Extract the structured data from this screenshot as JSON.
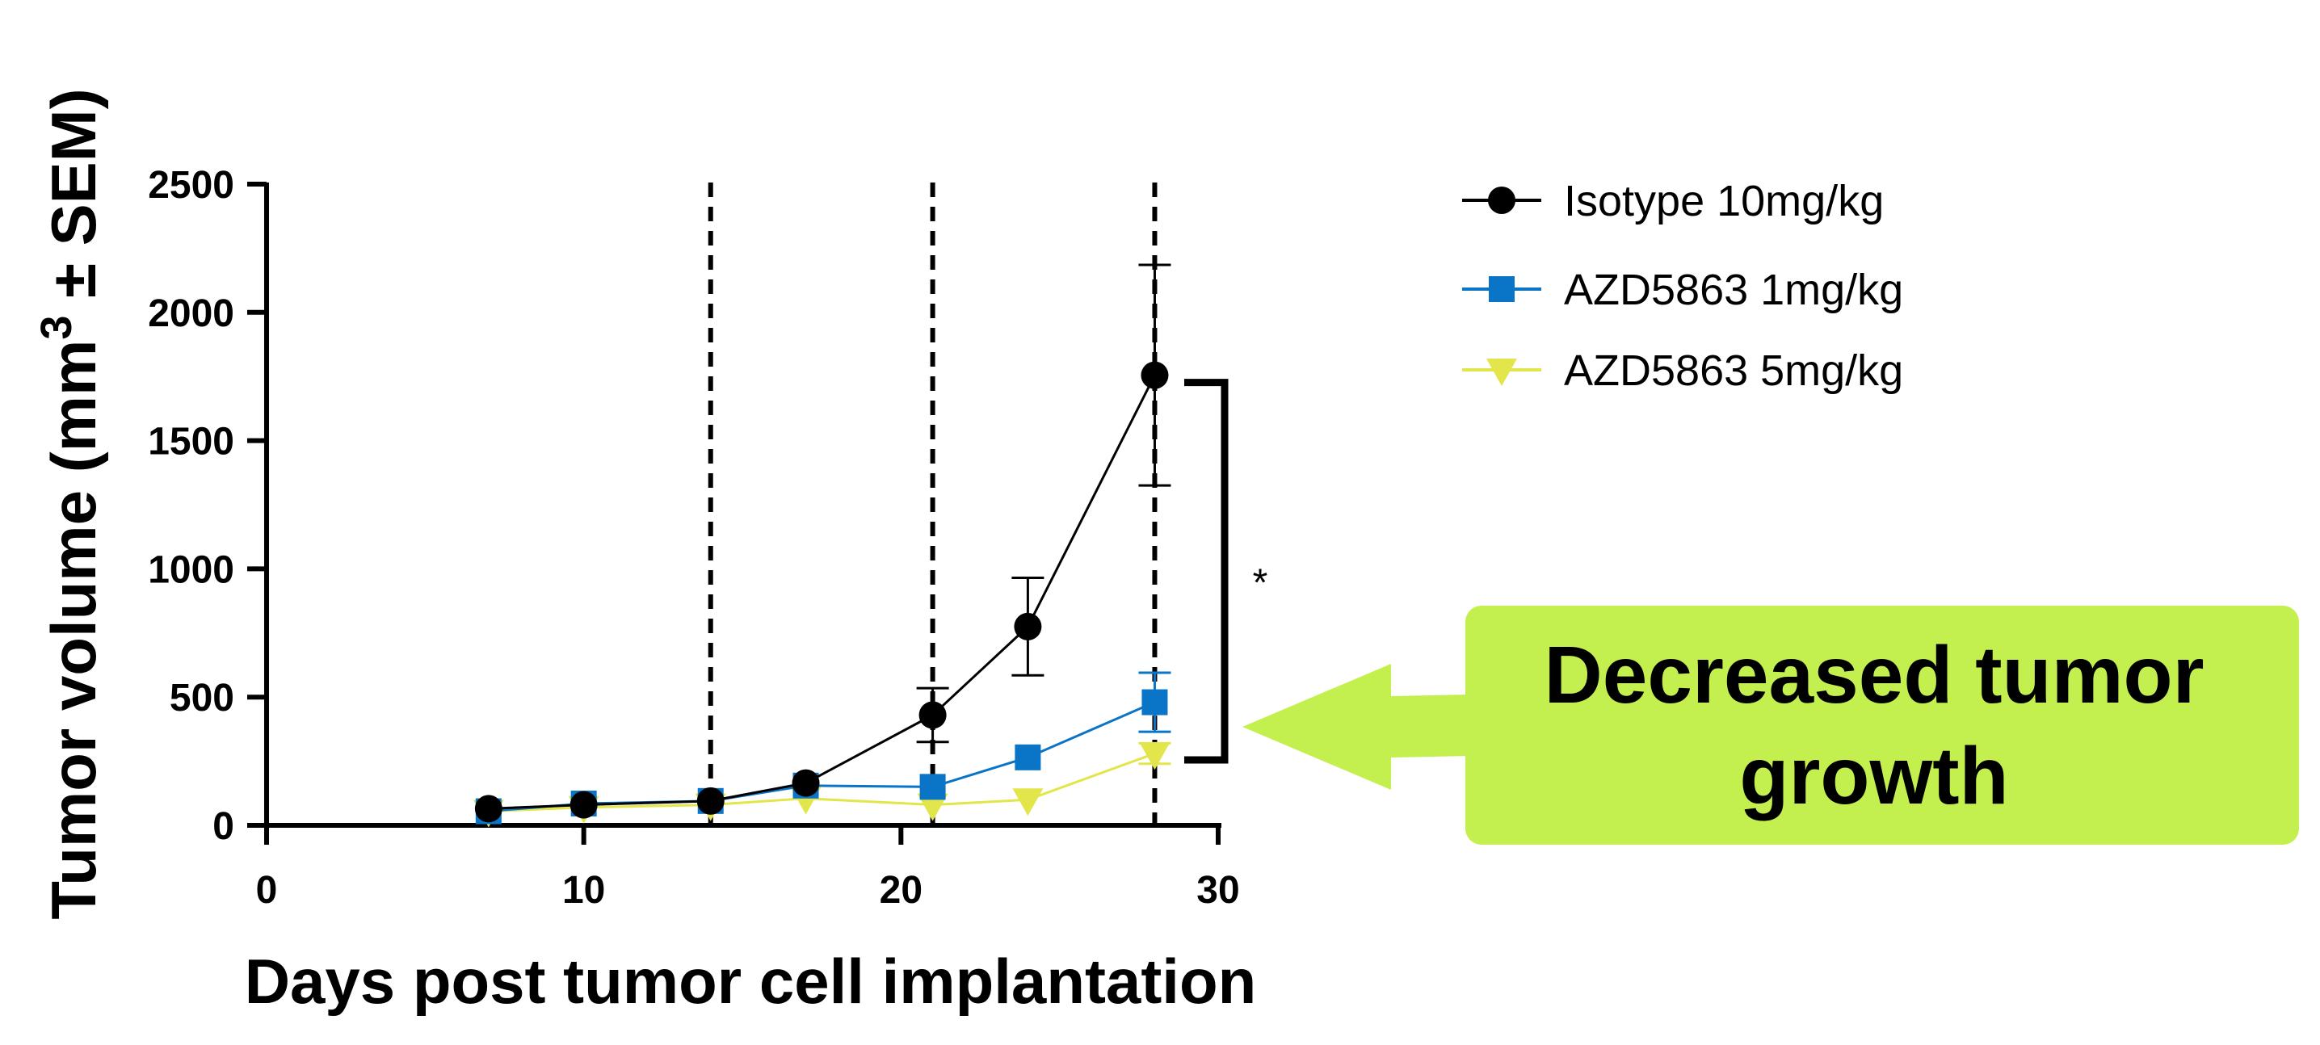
{
  "chart_data": {
    "type": "line",
    "xlabel": "Days post tumor cell implantation",
    "ylabel_main": "Tumor volume (mm",
    "ylabel_sup": "3",
    "ylabel_tail": " ± SEM)",
    "xlim": [
      0,
      30
    ],
    "ylim": [
      0,
      2500
    ],
    "x_ticks": [
      "0",
      "10",
      "20",
      "30"
    ],
    "y_ticks": [
      "0",
      "500",
      "1000",
      "1500",
      "2000",
      "2500"
    ],
    "grid": false,
    "legend_position": "top-right",
    "dosing_days": [
      14,
      21,
      28
    ],
    "series": [
      {
        "name": "Isotype 10mg/kg",
        "color": "#000000",
        "marker": "circle",
        "x": [
          7,
          10,
          14,
          17,
          21,
          24,
          28
        ],
        "y": [
          65,
          80,
          95,
          165,
          430,
          775,
          1755
        ],
        "err": [
          15,
          15,
          15,
          20,
          105,
          190,
          430
        ]
      },
      {
        "name": "AZD5863 1mg/kg",
        "color": "#0a74c7",
        "marker": "square",
        "x": [
          7,
          10,
          14,
          17,
          21,
          24,
          28
        ],
        "y": [
          55,
          85,
          95,
          155,
          150,
          265,
          480
        ],
        "err": [
          10,
          10,
          10,
          15,
          15,
          30,
          115
        ]
      },
      {
        "name": "AZD5863 5mg/kg",
        "color": "#e2e64a",
        "marker": "triangle-down",
        "x": [
          7,
          10,
          14,
          17,
          21,
          24,
          28
        ],
        "y": [
          55,
          70,
          80,
          105,
          80,
          100,
          280
        ],
        "err": [
          8,
          8,
          8,
          10,
          10,
          15,
          40
        ]
      }
    ],
    "significance_bracket": {
      "label": "*",
      "from_y": 1755,
      "to_y": 255
    },
    "annotation": {
      "lines": [
        "Decreased tumor",
        "growth"
      ],
      "box_color": "#c3f04e",
      "arrow_direction": "left"
    }
  }
}
